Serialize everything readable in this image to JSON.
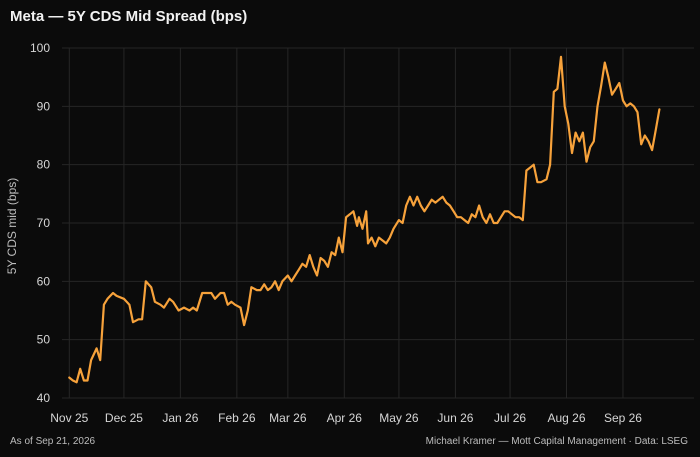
{
  "chart_data": {
    "type": "line",
    "title": "Meta — 5Y CDS Mid Spread (bps)",
    "ylabel": "5Y CDS mid (bps)",
    "xlabel": "",
    "ylim": [
      40,
      100
    ],
    "yticks": [
      40,
      50,
      60,
      70,
      80,
      90,
      100
    ],
    "xlim": [
      "2025-10-28",
      "2026-10-10"
    ],
    "xticks": [
      {
        "label": "Nov 25",
        "date": "2025-11-01"
      },
      {
        "label": "Dec 25",
        "date": "2025-12-01"
      },
      {
        "label": "Jan 26",
        "date": "2026-01-01"
      },
      {
        "label": "Feb 26",
        "date": "2026-02-01"
      },
      {
        "label": "Mar 26",
        "date": "2026-03-01"
      },
      {
        "label": "Apr 26",
        "date": "2026-04-01"
      },
      {
        "label": "May 26",
        "date": "2026-05-01"
      },
      {
        "label": "Jun 26",
        "date": "2026-06-01"
      },
      {
        "label": "Jul 26",
        "date": "2026-07-01"
      },
      {
        "label": "Aug 26",
        "date": "2026-08-01"
      },
      {
        "label": "Sep 26",
        "date": "2026-09-01"
      }
    ],
    "grid": true,
    "line_color": "#f7a23b",
    "series": [
      {
        "name": "",
        "points": [
          [
            "2025-11-01",
            43.5
          ],
          [
            "2025-11-03",
            43.0
          ],
          [
            "2025-11-05",
            42.7
          ],
          [
            "2025-11-07",
            45.0
          ],
          [
            "2025-11-09",
            43.0
          ],
          [
            "2025-11-11",
            43.0
          ],
          [
            "2025-11-13",
            46.5
          ],
          [
            "2025-11-16",
            48.5
          ],
          [
            "2025-11-18",
            46.5
          ],
          [
            "2025-11-20",
            56.0
          ],
          [
            "2025-11-22",
            57.0
          ],
          [
            "2025-11-25",
            58.0
          ],
          [
            "2025-11-27",
            57.5
          ],
          [
            "2025-12-01",
            57.0
          ],
          [
            "2025-12-04",
            56.0
          ],
          [
            "2025-12-06",
            53.0
          ],
          [
            "2025-12-09",
            53.5
          ],
          [
            "2025-12-11",
            53.5
          ],
          [
            "2025-12-13",
            60.0
          ],
          [
            "2025-12-16",
            59.0
          ],
          [
            "2025-12-18",
            56.5
          ],
          [
            "2025-12-21",
            56.0
          ],
          [
            "2025-12-23",
            55.5
          ],
          [
            "2025-12-26",
            57.0
          ],
          [
            "2025-12-28",
            56.5
          ],
          [
            "2025-12-31",
            55.0
          ],
          [
            "2026-01-03",
            55.5
          ],
          [
            "2026-01-06",
            55.0
          ],
          [
            "2026-01-08",
            55.5
          ],
          [
            "2026-01-10",
            55.0
          ],
          [
            "2026-01-13",
            58.0
          ],
          [
            "2026-01-16",
            58.0
          ],
          [
            "2026-01-18",
            58.0
          ],
          [
            "2026-01-20",
            57.0
          ],
          [
            "2026-01-23",
            58.0
          ],
          [
            "2026-01-25",
            58.0
          ],
          [
            "2026-01-27",
            56.0
          ],
          [
            "2026-01-29",
            56.5
          ],
          [
            "2026-01-31",
            56.0
          ],
          [
            "2026-02-03",
            55.5
          ],
          [
            "2026-02-05",
            52.5
          ],
          [
            "2026-02-07",
            55.0
          ],
          [
            "2026-02-09",
            59.0
          ],
          [
            "2026-02-12",
            58.5
          ],
          [
            "2026-02-14",
            58.5
          ],
          [
            "2026-02-16",
            59.5
          ],
          [
            "2026-02-18",
            58.5
          ],
          [
            "2026-02-20",
            59.0
          ],
          [
            "2026-02-22",
            60.0
          ],
          [
            "2026-02-24",
            58.5
          ],
          [
            "2026-02-26",
            60.0
          ],
          [
            "2026-03-01",
            61.0
          ],
          [
            "2026-03-03",
            60.0
          ],
          [
            "2026-03-05",
            61.0
          ],
          [
            "2026-03-07",
            62.0
          ],
          [
            "2026-03-09",
            63.0
          ],
          [
            "2026-03-11",
            62.5
          ],
          [
            "2026-03-13",
            64.5
          ],
          [
            "2026-03-15",
            62.5
          ],
          [
            "2026-03-17",
            61.0
          ],
          [
            "2026-03-19",
            64.0
          ],
          [
            "2026-03-21",
            63.5
          ],
          [
            "2026-03-23",
            62.5
          ],
          [
            "2026-03-25",
            65.0
          ],
          [
            "2026-03-27",
            64.5
          ],
          [
            "2026-03-29",
            67.5
          ],
          [
            "2026-03-31",
            65.0
          ],
          [
            "2026-04-02",
            71.0
          ],
          [
            "2026-04-04",
            71.5
          ],
          [
            "2026-04-06",
            72.0
          ],
          [
            "2026-04-08",
            69.5
          ],
          [
            "2026-04-09",
            71.0
          ],
          [
            "2026-04-11",
            69.0
          ],
          [
            "2026-04-13",
            72.0
          ],
          [
            "2026-04-14",
            66.5
          ],
          [
            "2026-04-16",
            67.5
          ],
          [
            "2026-04-18",
            66.0
          ],
          [
            "2026-04-20",
            67.5
          ],
          [
            "2026-04-22",
            67.0
          ],
          [
            "2026-04-24",
            66.5
          ],
          [
            "2026-04-26",
            67.5
          ],
          [
            "2026-04-28",
            69.0
          ],
          [
            "2026-05-01",
            70.5
          ],
          [
            "2026-05-03",
            70.0
          ],
          [
            "2026-05-05",
            73.0
          ],
          [
            "2026-05-07",
            74.5
          ],
          [
            "2026-05-09",
            73.0
          ],
          [
            "2026-05-11",
            74.5
          ],
          [
            "2026-05-13",
            73.0
          ],
          [
            "2026-05-15",
            72.0
          ],
          [
            "2026-05-17",
            73.0
          ],
          [
            "2026-05-19",
            74.0
          ],
          [
            "2026-05-21",
            73.5
          ],
          [
            "2026-05-23",
            74.0
          ],
          [
            "2026-05-25",
            74.5
          ],
          [
            "2026-05-27",
            73.5
          ],
          [
            "2026-05-29",
            73.0
          ],
          [
            "2026-05-31",
            72.0
          ],
          [
            "2026-06-02",
            71.0
          ],
          [
            "2026-06-04",
            71.0
          ],
          [
            "2026-06-06",
            70.5
          ],
          [
            "2026-06-08",
            70.0
          ],
          [
            "2026-06-10",
            71.5
          ],
          [
            "2026-06-12",
            71.0
          ],
          [
            "2026-06-14",
            73.0
          ],
          [
            "2026-06-16",
            71.0
          ],
          [
            "2026-06-18",
            70.0
          ],
          [
            "2026-06-20",
            71.5
          ],
          [
            "2026-06-22",
            70.0
          ],
          [
            "2026-06-24",
            70.0
          ],
          [
            "2026-06-26",
            71.0
          ],
          [
            "2026-06-28",
            72.0
          ],
          [
            "2026-06-30",
            72.0
          ],
          [
            "2026-07-02",
            71.5
          ],
          [
            "2026-07-04",
            71.0
          ],
          [
            "2026-07-06",
            71.0
          ],
          [
            "2026-07-08",
            70.5
          ],
          [
            "2026-07-10",
            79.0
          ],
          [
            "2026-07-12",
            79.5
          ],
          [
            "2026-07-14",
            80.0
          ],
          [
            "2026-07-16",
            77.0
          ],
          [
            "2026-07-18",
            77.0
          ],
          [
            "2026-07-21",
            77.5
          ],
          [
            "2026-07-23",
            80.0
          ],
          [
            "2026-07-25",
            92.5
          ],
          [
            "2026-07-27",
            93.0
          ],
          [
            "2026-07-29",
            98.5
          ],
          [
            "2026-07-31",
            90.0
          ],
          [
            "2026-08-02",
            87.0
          ],
          [
            "2026-08-04",
            82.0
          ],
          [
            "2026-08-06",
            85.5
          ],
          [
            "2026-08-08",
            84.0
          ],
          [
            "2026-08-10",
            85.5
          ],
          [
            "2026-08-12",
            80.5
          ],
          [
            "2026-08-14",
            83.0
          ],
          [
            "2026-08-16",
            84.0
          ],
          [
            "2026-08-18",
            90.0
          ],
          [
            "2026-08-20",
            93.5
          ],
          [
            "2026-08-22",
            97.5
          ],
          [
            "2026-08-24",
            95.0
          ],
          [
            "2026-08-26",
            92.0
          ],
          [
            "2026-08-28",
            93.0
          ],
          [
            "2026-08-30",
            94.0
          ],
          [
            "2026-09-01",
            91.0
          ],
          [
            "2026-09-03",
            90.0
          ],
          [
            "2026-09-05",
            90.5
          ],
          [
            "2026-09-07",
            90.0
          ],
          [
            "2026-09-09",
            89.0
          ],
          [
            "2026-09-11",
            83.5
          ],
          [
            "2026-09-13",
            85.0
          ],
          [
            "2026-09-15",
            84.0
          ],
          [
            "2026-09-17",
            82.5
          ],
          [
            "2026-09-19",
            86.0
          ],
          [
            "2026-09-21",
            89.5
          ]
        ]
      }
    ]
  },
  "footer": {
    "as_of": "As of Sep 21, 2026",
    "credit": "Michael Kramer — Mott Capital Management  ·  Data: LSEG"
  }
}
